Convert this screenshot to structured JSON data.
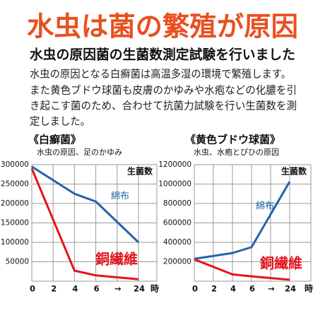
{
  "title": "水虫は菌の繁殖が原因",
  "subtitle": "水虫の原因菌の生菌数測定試験を行いました",
  "paragraph": [
    "水虫の原因となる白癬菌は高温多湿の環境で繁殖します。",
    "また黄色ブドウ球菌も皮膚のかゆみや水疱などの化膿を引",
    "き起こす菌のため、合わせて抗菌力試験を行い生菌数を測",
    "定しました。"
  ],
  "chart_data": [
    {
      "type": "line",
      "title": "《白癬菌》",
      "subtitle": "水虫の原因、足のかゆみ",
      "y_label": "生菌数",
      "x_label": "時",
      "categories": [
        "0",
        "2",
        "4",
        "6",
        "→",
        "24"
      ],
      "ylim": [
        0,
        300000
      ],
      "yticks": [
        50000,
        100000,
        150000,
        200000,
        250000,
        300000
      ],
      "grid": true,
      "series": [
        {
          "name": "綿布",
          "color": "#2364a8",
          "x": [
            "0",
            "4",
            "6",
            "24"
          ],
          "values": [
            295000,
            225000,
            205000,
            100000
          ]
        },
        {
          "name": "銅繊維",
          "color": "#e3141b",
          "x": [
            "0",
            "4",
            "6",
            "24"
          ],
          "values": [
            290000,
            27000,
            15000,
            5000
          ]
        }
      ]
    },
    {
      "type": "line",
      "title": "《黄色ブドウ球菌》",
      "subtitle": "水虫、水疱とぴひの原因",
      "y_label": "生菌数",
      "x_label": "時",
      "categories": [
        "0",
        "2",
        "4",
        "6",
        "→",
        "24"
      ],
      "ylim": [
        0,
        1200000
      ],
      "yticks": [
        200000,
        400000,
        600000,
        800000,
        1000000,
        1200000
      ],
      "grid": true,
      "series": [
        {
          "name": "綿布",
          "color": "#2364a8",
          "x": [
            "0",
            "4",
            "6",
            "24"
          ],
          "values": [
            230000,
            290000,
            350000,
            1025000
          ]
        },
        {
          "name": "銅繊維",
          "color": "#e3141b",
          "x": [
            "0",
            "4",
            "6",
            "24"
          ],
          "values": [
            225000,
            70000,
            50000,
            15000
          ]
        }
      ]
    }
  ]
}
